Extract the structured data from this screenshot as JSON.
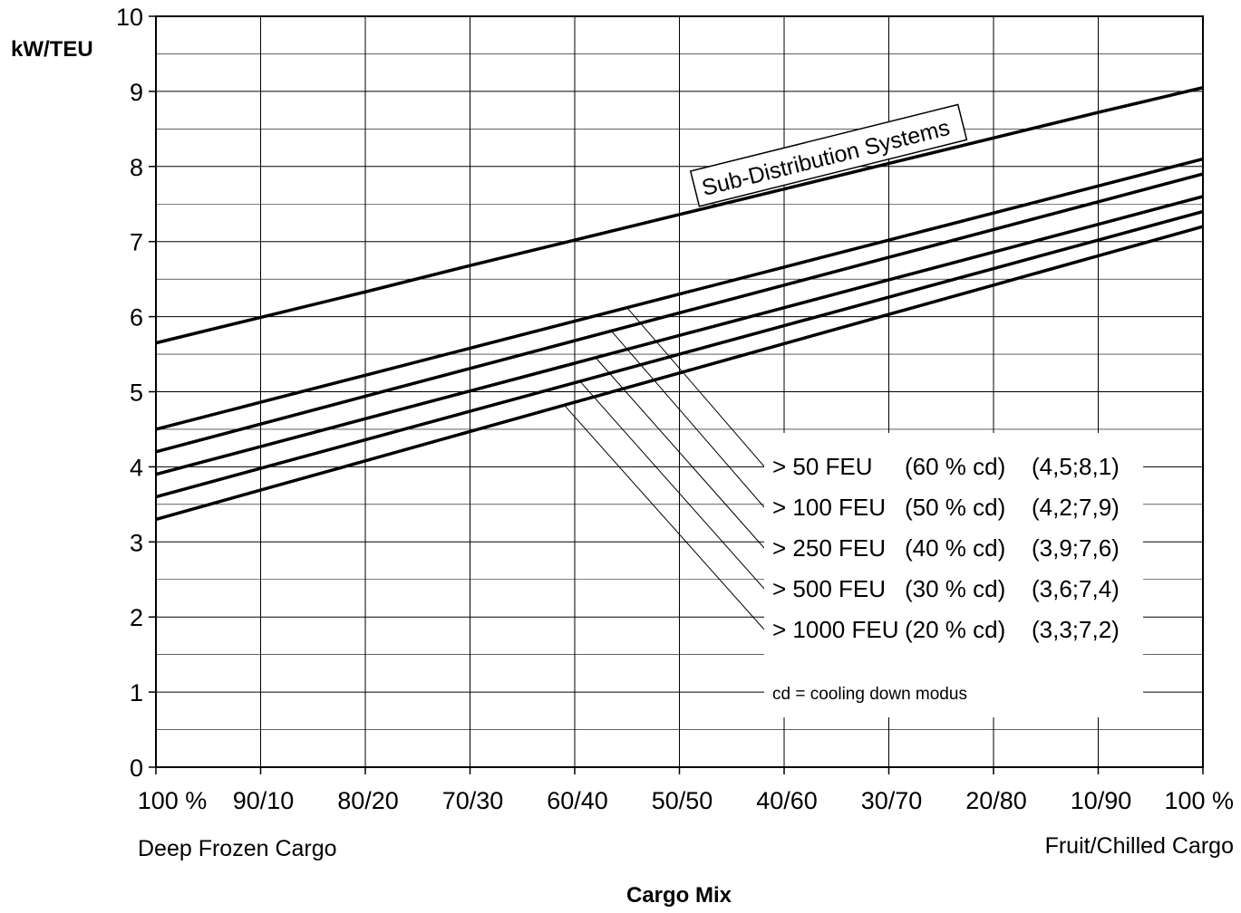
{
  "chart_data": {
    "type": "line",
    "ylabel": "kW/TEU",
    "xlabel": "Cargo Mix",
    "ylim": [
      0,
      10
    ],
    "yticks": [
      "0",
      "1",
      "2",
      "3",
      "4",
      "5",
      "6",
      "7",
      "8",
      "9",
      "10"
    ],
    "categories": [
      "100 %",
      "90/10",
      "80/20",
      "70/30",
      "60/40",
      "50/50",
      "40/60",
      "30/70",
      "20/80",
      "10/90",
      "100 %"
    ],
    "x_end_labels": {
      "left": "Deep Frozen Cargo",
      "right": "Fruit/Chilled Cargo"
    },
    "grid": true,
    "series": [
      {
        "name": "Sub-Distribution Systems",
        "values": [
          5.65,
          5.99,
          6.33,
          6.68,
          7.02,
          7.36,
          7.7,
          8.04,
          8.38,
          8.72,
          9.05
        ]
      },
      {
        "name": "> 50 FEU",
        "values": [
          4.5,
          4.86,
          5.22,
          5.58,
          5.94,
          6.3,
          6.66,
          7.02,
          7.38,
          7.74,
          8.1
        ]
      },
      {
        "name": "> 100 FEU",
        "values": [
          4.2,
          4.57,
          4.94,
          5.31,
          5.68,
          6.05,
          6.42,
          6.79,
          7.16,
          7.53,
          7.9
        ]
      },
      {
        "name": "> 250 FEU",
        "values": [
          3.9,
          4.27,
          4.64,
          5.01,
          5.38,
          5.75,
          6.12,
          6.49,
          6.86,
          7.23,
          7.6
        ]
      },
      {
        "name": "> 500 FEU",
        "values": [
          3.6,
          3.98,
          4.36,
          4.74,
          5.12,
          5.5,
          5.88,
          6.26,
          6.64,
          7.02,
          7.4
        ]
      },
      {
        "name": "> 1000 FEU",
        "values": [
          3.3,
          3.69,
          4.08,
          4.47,
          4.86,
          5.25,
          5.64,
          6.03,
          6.42,
          6.81,
          7.2
        ]
      }
    ],
    "annotations": {
      "sub_distribution_label": "Sub-Distribution Systems",
      "legend_entries": [
        {
          "name": "> 50 FEU",
          "cd": "(60 % cd)",
          "range": "(4,5;8,1)"
        },
        {
          "name": "> 100 FEU",
          "cd": "(50 % cd)",
          "range": "(4,2;7,9)"
        },
        {
          "name": "> 250 FEU",
          "cd": "(40 % cd)",
          "range": "(3,9;7,6)"
        },
        {
          "name": "> 500 FEU",
          "cd": "(30 % cd)",
          "range": "(3,6;7,4)"
        },
        {
          "name": "> 1000 FEU",
          "cd": "(20 % cd)",
          "range": "(3,3;7,2)"
        }
      ],
      "note": "cd = cooling down modus"
    }
  }
}
